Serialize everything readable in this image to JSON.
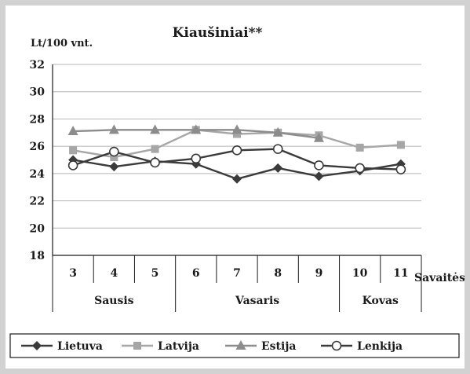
{
  "chart_data": {
    "type": "line",
    "title": "Kiaušiniai**",
    "ylabel": "Lt/100 vnt.",
    "xlabel": "Savaitės",
    "ylim": [
      18,
      32
    ],
    "yticks": [
      18,
      20,
      22,
      24,
      26,
      28,
      30,
      32
    ],
    "grid": true,
    "legend_position": "bottom",
    "categories": [
      "3",
      "4",
      "5",
      "6",
      "7",
      "8",
      "9",
      "10",
      "11"
    ],
    "months": [
      {
        "label": "Sausis",
        "span": 3
      },
      {
        "label": "Vasaris",
        "span": 4
      },
      {
        "label": "Kovas",
        "span": 2
      }
    ],
    "series": [
      {
        "name": "Lietuva",
        "marker": "diamond",
        "color": "#3a3a3a",
        "values": [
          25.0,
          24.5,
          24.9,
          24.7,
          23.6,
          24.4,
          23.8,
          24.2,
          24.7
        ]
      },
      {
        "name": "Latvija",
        "marker": "square",
        "color": "#a6a6a6",
        "values": [
          25.7,
          25.2,
          25.8,
          27.2,
          26.9,
          27.0,
          26.8,
          25.9,
          26.1
        ]
      },
      {
        "name": "Estija",
        "marker": "triangle",
        "color": "#8c8c8c",
        "values": [
          27.1,
          27.2,
          27.2,
          27.2,
          27.2,
          27.0,
          26.6,
          null,
          null
        ]
      },
      {
        "name": "Lenkija",
        "marker": "circle",
        "color": "#3a3a3a",
        "values": [
          24.6,
          25.6,
          24.8,
          25.1,
          25.7,
          25.8,
          24.6,
          24.4,
          24.3
        ]
      }
    ]
  }
}
